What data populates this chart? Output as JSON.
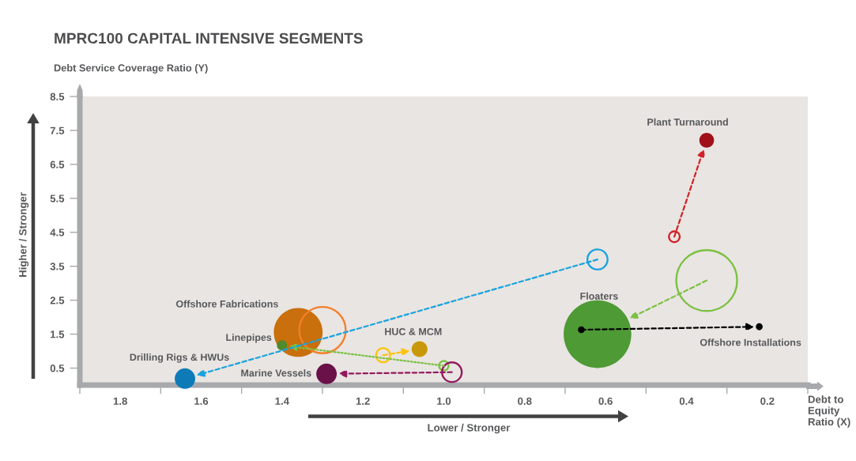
{
  "chart_data": {
    "type": "bubble",
    "title": "MPRC100 CAPITAL INTENSIVE SEGMENTS",
    "xlabel": "Debt to Equity Ratio (X)",
    "ylabel": "Debt Service Coverage Ratio (Y)",
    "annotations": [
      "Higher / Stronger",
      "Lower / Stronger"
    ],
    "xlim": [
      1.9,
      0.1
    ],
    "ylim": [
      0,
      8.5
    ],
    "xticks": [
      {
        "value": 1.9,
        "label": null
      },
      1.8,
      {
        "value": 1.7,
        "label": null
      },
      1.6,
      {
        "value": 1.5,
        "label": null
      },
      1.4,
      {
        "value": 1.3,
        "label": null
      },
      1.2,
      {
        "value": 1.1,
        "label": null
      },
      {
        "value": 1.0,
        "label": "1.0"
      },
      {
        "value": 0.9,
        "label": null
      },
      0.8,
      {
        "value": 0.7,
        "label": null
      },
      0.6,
      {
        "value": 0.5,
        "label": null
      },
      0.4,
      {
        "value": 0.3,
        "label": null
      },
      0.2,
      {
        "value": 0.1,
        "label": null
      }
    ],
    "yticks": [
      0.5,
      1.5,
      2.5,
      3.5,
      4.5,
      5.5,
      6.5,
      7.5,
      8.5
    ],
    "series": [
      {
        "name": "Plant Turnaround",
        "colors": [
          "#d12229",
          "#a01018"
        ],
        "x": [
          0.43,
          0.35
        ],
        "values": [
          4.37,
          7.21
        ],
        "sizes": [
          0.026,
          0.047
        ],
        "line_style": "dashed"
      },
      {
        "name": "Offshore Fabrications",
        "colors": [
          "#f47f2a",
          "#c96f0c"
        ],
        "x": [
          1.3,
          1.36
        ],
        "values": [
          1.62,
          1.55
        ],
        "sizes": [
          0.47,
          0.52
        ]
      },
      {
        "name": "Linepipes",
        "colors": [
          "#7cc142",
          "#4f8a2b"
        ],
        "x": [
          1.0,
          1.4
        ],
        "values": [
          0.57,
          1.17
        ],
        "sizes": [
          0.02,
          0.023
        ],
        "line_style": "dotted"
      },
      {
        "name": "Drilling Rigs & HWUs",
        "colors": [
          "#1aa3de",
          "#0e7ab8"
        ],
        "x": [
          0.62,
          1.64
        ],
        "values": [
          3.7,
          0.19
        ],
        "sizes": [
          0.089,
          0.092
        ],
        "line_style": "dashed"
      },
      {
        "name": "Marine Vessels",
        "colors": [
          "#93195f",
          "#6b1149"
        ],
        "x": [
          0.98,
          1.29
        ],
        "values": [
          0.38,
          0.33
        ],
        "sizes": [
          0.085,
          0.092
        ],
        "line_style": "dashed"
      },
      {
        "name": "HUC & MCM",
        "colors": [
          "#fcc314",
          "#c9980a"
        ],
        "x": [
          1.15,
          1.06
        ],
        "values": [
          0.88,
          1.06
        ],
        "sizes": [
          0.044,
          0.055
        ],
        "line_style": "dashed"
      },
      {
        "name": "Floaters",
        "colors": [
          "#7cc142",
          "#4e9a35"
        ],
        "x": [
          0.35,
          0.62
        ],
        "values": [
          3.08,
          1.5
        ],
        "sizes": [
          0.81,
          1
        ],
        "line_style": "dashed"
      },
      {
        "name": "Offshore Installations",
        "type": "scatter",
        "colors": [
          "#000000",
          "#000000"
        ],
        "x": [
          0.66,
          0.22
        ],
        "values": [
          1.63,
          1.72
        ],
        "sizes": [
          0.01,
          0.01
        ],
        "marker": "circle",
        "line_style": "dashed"
      }
    ]
  }
}
